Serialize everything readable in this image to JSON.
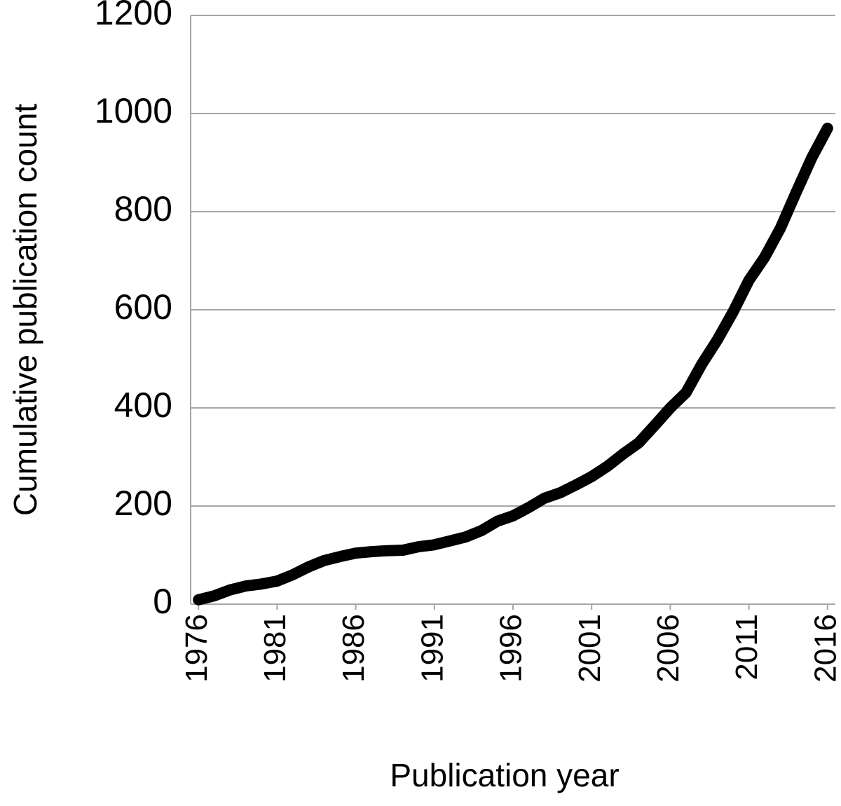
{
  "chart_data": {
    "type": "line",
    "x_label": "Publication year",
    "y_label": "Cumulative publication count",
    "x": [
      1976,
      1977,
      1978,
      1979,
      1980,
      1981,
      1982,
      1983,
      1984,
      1985,
      1986,
      1987,
      1988,
      1989,
      1990,
      1991,
      1992,
      1993,
      1994,
      1995,
      1996,
      1997,
      1998,
      1999,
      2000,
      2001,
      2002,
      2003,
      2004,
      2005,
      2006,
      2007,
      2008,
      2009,
      2010,
      2011,
      2012,
      2013,
      2014,
      2015,
      2016
    ],
    "values": [
      9,
      17,
      29,
      37,
      41,
      47,
      60,
      76,
      89,
      97,
      104,
      107,
      109,
      110,
      117,
      121,
      129,
      137,
      150,
      169,
      180,
      197,
      216,
      227,
      243,
      260,
      281,
      306,
      329,
      364,
      400,
      431,
      489,
      539,
      596,
      660,
      707,
      766,
      839,
      910,
      970
    ],
    "color": "#000000",
    "xlim": [
      1975.5,
      2016.5
    ],
    "xticks": [
      1976,
      1981,
      1986,
      1991,
      1996,
      2001,
      2006,
      2011,
      2016
    ],
    "ylim": [
      0,
      1200
    ],
    "yticks": [
      0,
      200,
      400,
      600,
      800,
      1000,
      1200
    ],
    "grid": true
  }
}
